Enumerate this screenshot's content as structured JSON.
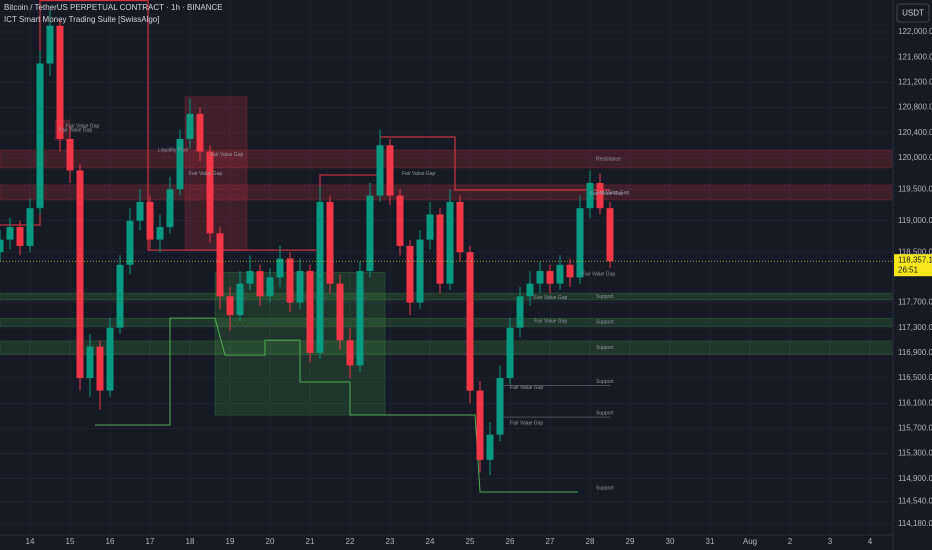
{
  "chart_data": {
    "type": "candlestick",
    "title": "Bitcoin / TetherUS PERPETUAL CONTRACT · 1h · BINANCE",
    "subtitle": "ICT Smart Money Trading Suite [SwissAlgo]",
    "currency": "USDT",
    "up_color": "#089981",
    "down_color": "#f23645",
    "xlim": [
      -0.75,
      21.575
    ],
    "ylim": [
      114005,
      122509
    ],
    "xticks": [
      {
        "value": 0,
        "label": "14"
      },
      {
        "value": 1,
        "label": "15"
      },
      {
        "value": 2,
        "label": "16"
      },
      {
        "value": 3,
        "label": "17"
      },
      {
        "value": 4,
        "label": "18"
      },
      {
        "value": 5,
        "label": "19"
      },
      {
        "value": 6,
        "label": "20"
      },
      {
        "value": 7,
        "label": "21"
      },
      {
        "value": 8,
        "label": "22"
      },
      {
        "value": 9,
        "label": "23"
      },
      {
        "value": 10,
        "label": "24"
      },
      {
        "value": 11,
        "label": "25"
      },
      {
        "value": 12,
        "label": "26"
      },
      {
        "value": 13,
        "label": "27"
      },
      {
        "value": 14,
        "label": "28"
      },
      {
        "value": 15,
        "label": "29"
      },
      {
        "value": 16,
        "label": "30"
      },
      {
        "value": 17,
        "label": "31"
      },
      {
        "value": 18,
        "label": "Aug"
      },
      {
        "value": 19,
        "label": "2"
      },
      {
        "value": 20,
        "label": "3"
      },
      {
        "value": 21,
        "label": "4"
      }
    ],
    "yticks": [
      {
        "value": 122000,
        "label": "122,000.0"
      },
      {
        "value": 121600,
        "label": "121,600.0"
      },
      {
        "value": 121200,
        "label": "121,200.0"
      },
      {
        "value": 120800,
        "label": "120,800.0"
      },
      {
        "value": 120400,
        "label": "120,400.0"
      },
      {
        "value": 120000,
        "label": "120,000.0"
      },
      {
        "value": 119500,
        "label": "119,500.0"
      },
      {
        "value": 119000,
        "label": "119,000.0"
      },
      {
        "value": 118500,
        "label": "118,500.0"
      },
      {
        "value": 117700,
        "label": "117,700.0"
      },
      {
        "value": 117300,
        "label": "117,300.0"
      },
      {
        "value": 116900,
        "label": "116,900.0"
      },
      {
        "value": 116500,
        "label": "116,500.0"
      },
      {
        "value": 116100,
        "label": "116,100.0"
      },
      {
        "value": 115700,
        "label": "115,700.0"
      },
      {
        "value": 115300,
        "label": "115,300.0"
      },
      {
        "value": 114900,
        "label": "114,900.0"
      },
      {
        "value": 114540,
        "label": "114,540.0"
      },
      {
        "value": 114180,
        "label": "114,180.0"
      }
    ],
    "grid": true,
    "x": [
      -0.75,
      -0.5,
      -0.25,
      0,
      0.25,
      0.5,
      0.75,
      1,
      1.25,
      1.5,
      1.75,
      2,
      2.25,
      2.5,
      2.75,
      3,
      3.25,
      3.5,
      3.75,
      4,
      4.25,
      4.5,
      4.75,
      5,
      5.25,
      5.5,
      5.75,
      6,
      6.25,
      6.5,
      6.75,
      7,
      7.25,
      7.5,
      7.75,
      8,
      8.25,
      8.5,
      8.75,
      9,
      9.25,
      9.5,
      9.75,
      10,
      10.25,
      10.5,
      10.75,
      11,
      11.25,
      11.5,
      11.75,
      12,
      12.25,
      12.5,
      12.75,
      13,
      13.25,
      13.5,
      13.75,
      14,
      14.25,
      14.5
    ],
    "open": [
      118500,
      118700,
      118900,
      118600,
      119200,
      121500,
      122100,
      120300,
      119800,
      116500,
      117000,
      116300,
      117300,
      118300,
      119000,
      119300,
      118700,
      118900,
      119500,
      120300,
      120700,
      120100,
      118800,
      117800,
      117500,
      118000,
      118200,
      117800,
      118100,
      118400,
      117700,
      118200,
      116900,
      119300,
      118000,
      117100,
      116700,
      118200,
      119400,
      120200,
      119400,
      118600,
      117700,
      118700,
      119100,
      118000,
      119300,
      118500,
      116300,
      115200,
      115600,
      116500,
      117300,
      117800,
      118000,
      118200,
      118000,
      118300,
      118100,
      119200,
      119600,
      119200
    ],
    "high": [
      118850,
      119050,
      119000,
      119350,
      121700,
      122350,
      122200,
      120500,
      119900,
      117200,
      117100,
      117450,
      118450,
      119200,
      119500,
      119400,
      119100,
      119700,
      120450,
      120950,
      120800,
      120200,
      118900,
      117950,
      118200,
      118450,
      118300,
      118250,
      118600,
      118500,
      118400,
      118300,
      119550,
      119400,
      118150,
      117300,
      118350,
      119600,
      120450,
      120300,
      119500,
      118700,
      118850,
      119300,
      119200,
      119500,
      119400,
      118600,
      116450,
      115800,
      116700,
      117450,
      117950,
      118200,
      118350,
      118300,
      118450,
      118400,
      119400,
      119800,
      119750,
      119300
    ],
    "low": [
      118350,
      118550,
      118450,
      118500,
      119100,
      121300,
      120100,
      119600,
      116300,
      116200,
      116000,
      116200,
      117200,
      118150,
      118850,
      118550,
      118500,
      118800,
      119400,
      120150,
      119950,
      118650,
      117600,
      117250,
      117400,
      117900,
      117650,
      117700,
      117950,
      117550,
      117600,
      116750,
      116800,
      117850,
      116950,
      116500,
      116600,
      118100,
      119300,
      119250,
      118450,
      117500,
      117600,
      118550,
      117850,
      117900,
      118350,
      116100,
      115000,
      114950,
      115500,
      116400,
      117150,
      117650,
      117850,
      117850,
      117900,
      117950,
      118000,
      119050,
      119100,
      118250
    ],
    "close": [
      118700,
      118900,
      118600,
      119200,
      121500,
      122100,
      120300,
      119800,
      116500,
      117000,
      116300,
      117300,
      118300,
      119000,
      119300,
      118700,
      118900,
      119500,
      120300,
      120700,
      120100,
      118800,
      117800,
      117500,
      118000,
      118200,
      117800,
      118100,
      118400,
      117700,
      118200,
      116900,
      119300,
      118000,
      117100,
      116700,
      118200,
      119400,
      120200,
      119400,
      118600,
      117700,
      118700,
      119100,
      118000,
      119300,
      118500,
      116300,
      115200,
      115600,
      116500,
      117300,
      117800,
      118000,
      118200,
      118000,
      118300,
      118100,
      119200,
      119600,
      119200,
      118357.1
    ],
    "last_price": 118357.1,
    "last_price_label": "118,357.1",
    "countdown": "26:51",
    "zones": [
      {
        "x0": -0.75,
        "x1": 21.575,
        "top": 120124,
        "bottom": 119840,
        "color": "#f23645",
        "label": "Resistance"
      },
      {
        "x0": -0.75,
        "x1": 21.575,
        "top": 119570,
        "bottom": 119330,
        "color": "#f23645",
        "label": "Fair Value Gap"
      },
      {
        "x0": 3.875,
        "x1": 5.425,
        "top": 120970,
        "bottom": 118530,
        "color": "#f23645",
        "label": "Fair Value Gap"
      },
      {
        "x0": 0.625,
        "x1": 1.0,
        "top": 120600,
        "bottom": 120280,
        "color": "#f23645",
        "label": "Fair Value Gap"
      },
      {
        "x0": 4.625,
        "x1": 8.875,
        "top": 118180,
        "bottom": 115910,
        "color": "#4caf50"
      },
      {
        "x0": -0.75,
        "x1": 21.575,
        "top": 117850,
        "bottom": 117740,
        "color": "#4caf50",
        "label": "Support"
      },
      {
        "x0": -0.75,
        "x1": 21.575,
        "top": 117450,
        "bottom": 117320,
        "color": "#4caf50",
        "label": "Support"
      },
      {
        "x0": -0.75,
        "x1": 21.575,
        "top": 117090,
        "bottom": 116870,
        "color": "#4caf50",
        "label": "Support"
      }
    ],
    "lines": [
      {
        "color": "#f23645",
        "x": [
          -0.75,
          0.25,
          0.25,
          2.95,
          2.95,
          7.25,
          7.25,
          8.75,
          8.75,
          10.625,
          10.625,
          14.5
        ],
        "y": [
          118932,
          118932,
          122500,
          122500,
          118534,
          118534,
          119727,
          119727,
          120331,
          120331,
          119488,
          119488
        ]
      },
      {
        "color": "#4caf50",
        "x": [
          1.625,
          3.5,
          3.5,
          4.625,
          4.875,
          5.875,
          5.875,
          6.75,
          6.75,
          8,
          8,
          11.125,
          11.25,
          13.7
        ],
        "y": [
          115753,
          115753,
          117453,
          117453,
          116865,
          116865,
          117103,
          117103,
          116436,
          116436,
          115912,
          115912,
          114688,
          114688
        ]
      }
    ],
    "levels": [
      {
        "x0": 11.75,
        "x1": 14.5,
        "price": 116380,
        "label": "Support"
      },
      {
        "x0": 11.75,
        "x1": 14.5,
        "price": 115880,
        "label": "Support"
      },
      {
        "x0": 11.25,
        "x1": 13.7,
        "price": 114688,
        "label": "Support"
      }
    ],
    "annotations": [
      {
        "x": 3.2,
        "y": 120120,
        "text": "Liquidity Pool"
      },
      {
        "x": 0.9,
        "y": 120500,
        "text": "Fair Value Gap"
      },
      {
        "x": 4.5,
        "y": 120050,
        "text": "Fair Value Gap"
      },
      {
        "x": 9.3,
        "y": 119750,
        "text": "Fair Value Gap"
      },
      {
        "x": 12.6,
        "y": 117780,
        "text": "Fair Value Gap"
      },
      {
        "x": 12.6,
        "y": 117400,
        "text": "Fair Value Gap"
      },
      {
        "x": 12.0,
        "y": 116350,
        "text": "Fair Value Gap"
      },
      {
        "x": 12.0,
        "y": 115780,
        "text": "Fair Value Gap"
      },
      {
        "x": 13.8,
        "y": 118150,
        "text": "Fair Value Gap"
      },
      {
        "x": 14.0,
        "y": 119430,
        "text": "Fair Value Gap"
      }
    ]
  }
}
